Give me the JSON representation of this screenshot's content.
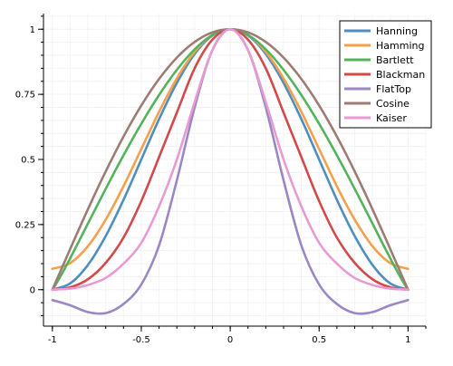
{
  "chart_data": {
    "type": "line",
    "title": "",
    "xlabel": "",
    "ylabel": "",
    "xlim": [
      -1.05,
      1.1
    ],
    "ylim": [
      -0.14,
      1.06
    ],
    "x_ticks": [
      -1,
      -0.5,
      0,
      0.5,
      1
    ],
    "x_tick_labels": [
      "-1",
      "-0.5",
      "0",
      "0.5",
      "1"
    ],
    "y_ticks": [
      0,
      0.25,
      0.5,
      0.75,
      1
    ],
    "y_tick_labels": [
      "0",
      "0.25",
      "0.5",
      "0.75",
      "1"
    ],
    "grid": true,
    "legend_position": "top-right",
    "series": [
      {
        "name": "Hanning",
        "color": "#4e8fbf",
        "x": [
          -1,
          -0.9,
          -0.8,
          -0.7,
          -0.6,
          -0.5,
          -0.4,
          -0.3,
          -0.2,
          -0.1,
          0,
          0.1,
          0.2,
          0.3,
          0.4,
          0.5,
          0.6,
          0.7,
          0.8,
          0.9,
          1
        ],
        "values": [
          0,
          0.024,
          0.095,
          0.206,
          0.345,
          0.5,
          0.655,
          0.794,
          0.905,
          0.976,
          1,
          0.976,
          0.905,
          0.794,
          0.655,
          0.5,
          0.345,
          0.206,
          0.095,
          0.024,
          0
        ]
      },
      {
        "name": "Hamming",
        "color": "#f5a04a",
        "x": [
          -1,
          -0.9,
          -0.8,
          -0.7,
          -0.6,
          -0.5,
          -0.4,
          -0.3,
          -0.2,
          -0.1,
          0,
          0.1,
          0.2,
          0.3,
          0.4,
          0.5,
          0.6,
          0.7,
          0.8,
          0.9,
          1
        ],
        "values": [
          0.08,
          0.102,
          0.167,
          0.269,
          0.397,
          0.54,
          0.683,
          0.811,
          0.913,
          0.978,
          1,
          0.978,
          0.913,
          0.811,
          0.683,
          0.54,
          0.397,
          0.269,
          0.167,
          0.102,
          0.08
        ]
      },
      {
        "name": "Bartlett",
        "color": "#52b45a",
        "x": [
          -1,
          0,
          1
        ],
        "values": [
          0,
          1,
          0
        ]
      },
      {
        "name": "Blackman",
        "color": "#d24a4a",
        "x": [
          -1,
          -0.9,
          -0.8,
          -0.7,
          -0.6,
          -0.5,
          -0.4,
          -0.3,
          -0.2,
          -0.1,
          0,
          0.1,
          0.2,
          0.3,
          0.4,
          0.5,
          0.6,
          0.7,
          0.8,
          0.9,
          1
        ],
        "values": [
          0,
          0.009,
          0.04,
          0.103,
          0.2,
          0.34,
          0.509,
          0.68,
          0.85,
          0.96,
          1,
          0.96,
          0.85,
          0.68,
          0.509,
          0.34,
          0.2,
          0.103,
          0.04,
          0.009,
          0
        ]
      },
      {
        "name": "FlatTop",
        "color": "#9b86c6",
        "x": [
          -1,
          -0.9,
          -0.8,
          -0.7,
          -0.6,
          -0.5,
          -0.4,
          -0.3,
          -0.2,
          -0.1,
          0,
          0.1,
          0.2,
          0.3,
          0.4,
          0.5,
          0.6,
          0.7,
          0.8,
          0.9,
          1
        ],
        "values": [
          -0.04,
          -0.06,
          -0.086,
          -0.09,
          -0.055,
          0.02,
          0.17,
          0.42,
          0.7,
          0.92,
          1,
          0.92,
          0.7,
          0.42,
          0.17,
          0.02,
          -0.055,
          -0.09,
          -0.086,
          -0.06,
          -0.04
        ]
      },
      {
        "name": "Cosine",
        "color": "#9e7b75",
        "x": [
          -1,
          -0.9,
          -0.8,
          -0.7,
          -0.6,
          -0.5,
          -0.4,
          -0.3,
          -0.2,
          -0.1,
          0,
          0.1,
          0.2,
          0.3,
          0.4,
          0.5,
          0.6,
          0.7,
          0.8,
          0.9,
          1
        ],
        "values": [
          0,
          0.156,
          0.309,
          0.454,
          0.588,
          0.707,
          0.809,
          0.891,
          0.951,
          0.988,
          1,
          0.988,
          0.951,
          0.891,
          0.809,
          0.707,
          0.588,
          0.454,
          0.309,
          0.156,
          0
        ]
      },
      {
        "name": "Kaiser",
        "color": "#e89ad2",
        "x": [
          -1,
          -0.9,
          -0.8,
          -0.7,
          -0.6,
          -0.5,
          -0.4,
          -0.3,
          -0.2,
          -0.1,
          0,
          0.1,
          0.2,
          0.3,
          0.4,
          0.5,
          0.6,
          0.7,
          0.8,
          0.9,
          1
        ],
        "values": [
          0,
          0.004,
          0.018,
          0.045,
          0.1,
          0.18,
          0.32,
          0.5,
          0.72,
          0.92,
          1,
          0.92,
          0.72,
          0.5,
          0.32,
          0.18,
          0.1,
          0.045,
          0.018,
          0.004,
          0
        ]
      }
    ]
  }
}
